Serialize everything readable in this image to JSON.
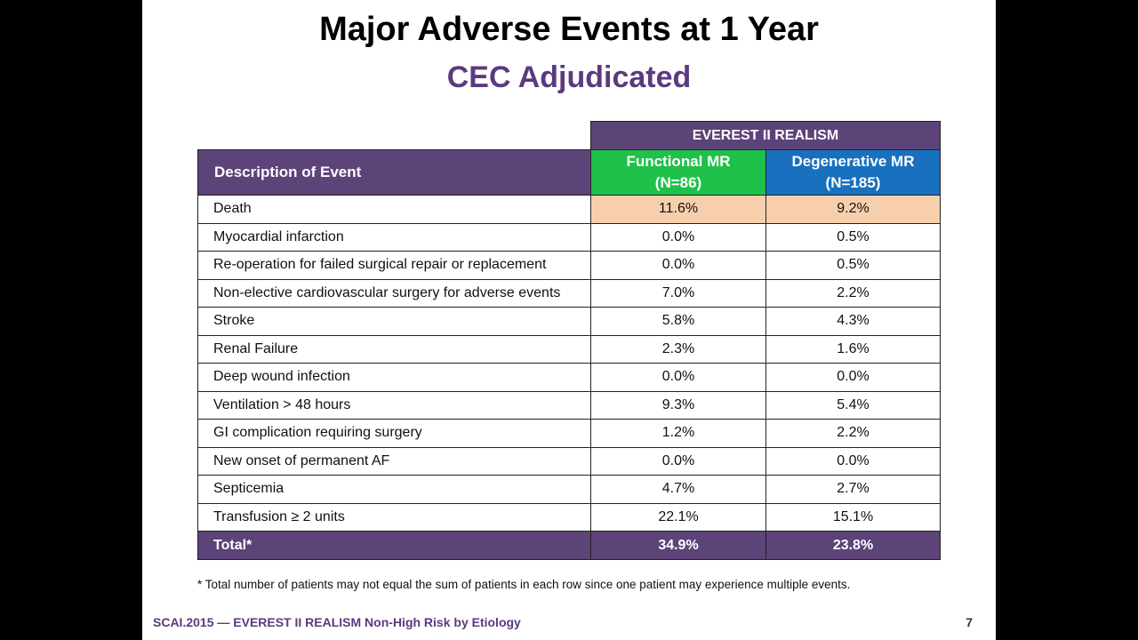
{
  "title": "Major Adverse Events at 1 Year",
  "subtitle": "CEC Adjudicated",
  "table": {
    "group_header": "EVEREST  II REALISM",
    "description_header": "Description  of Event",
    "col1_header_line1": "Functional  MR",
    "col1_header_line2": "(N=86)",
    "col2_header_line1": "Degenerative MR",
    "col2_header_line2": "(N=185)",
    "rows": [
      {
        "event": "Death",
        "functional": "11.6%",
        "degenerative": "9.2%"
      },
      {
        "event": "Myocardial infarction",
        "functional": "0.0%",
        "degenerative": "0.5%"
      },
      {
        "event": "Re-operation for failed surgical repair or replacement",
        "functional": "0.0%",
        "degenerative": "0.5%"
      },
      {
        "event": "Non-elective cardiovascular surgery for adverse events",
        "functional": "7.0%",
        "degenerative": "2.2%"
      },
      {
        "event": "Stroke",
        "functional": "5.8%",
        "degenerative": "4.3%"
      },
      {
        "event": "Renal Failure",
        "functional": "2.3%",
        "degenerative": "1.6%"
      },
      {
        "event": "Deep wound infection",
        "functional": "0.0%",
        "degenerative": "0.0%"
      },
      {
        "event": "Ventilation > 48 hours",
        "functional": "9.3%",
        "degenerative": "5.4%"
      },
      {
        "event": "GI complication requiring surgery",
        "functional": "1.2%",
        "degenerative": "2.2%"
      },
      {
        "event": "New onset of permanent AF",
        "functional": "0.0%",
        "degenerative": "0.0%"
      },
      {
        "event": "Septicemia",
        "functional": "4.7%",
        "degenerative": "2.7%"
      },
      {
        "event": "Transfusion ≥ 2 units",
        "functional": "22.1%",
        "degenerative": "15.1%"
      }
    ],
    "total": {
      "event": "Total*",
      "functional": "34.9%",
      "degenerative": "23.8%"
    }
  },
  "footnote": "* Total number  of patients may not equal the sum of patients in each row since one patient may  experience multiple events.",
  "footer": "SCAI.2015 — EVEREST II REALISM Non-High Risk by Etiology",
  "page_number": "7",
  "colors": {
    "header_purple": "#5c4378",
    "functional_green": "#1fc14a",
    "degenerative_blue": "#1870bf",
    "death_highlight": "#f8cfad",
    "subtitle_purple": "#5b3a7e"
  }
}
